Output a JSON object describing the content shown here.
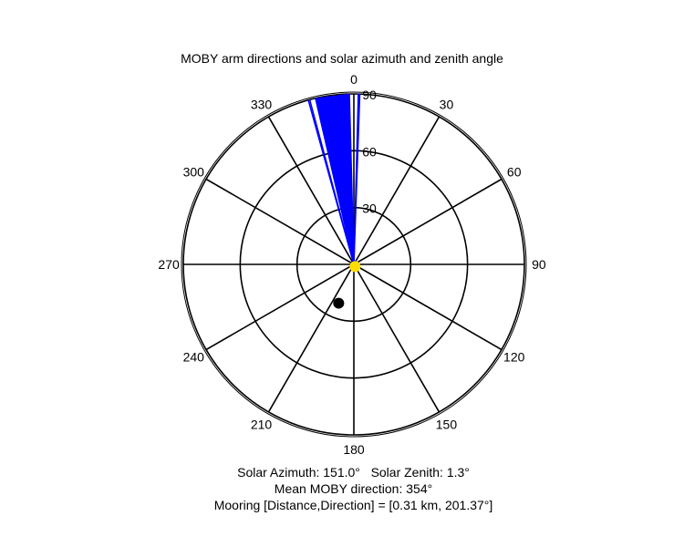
{
  "chart_data": {
    "type": "polar",
    "title": "MOBY arm directions and solar azimuth and zenith angle",
    "orientation": "clockwise from top (0 = north)",
    "angle_ticks": [
      "0",
      "30",
      "60",
      "90",
      "120",
      "150",
      "180",
      "210",
      "240",
      "270",
      "300",
      "330"
    ],
    "radial_ticks": [
      "30",
      "60",
      "90"
    ],
    "radial_max": 90,
    "series": [
      {
        "kind": "arm-direction-wedges",
        "color": "#0000ff",
        "spokes": [
          {
            "direction": 344.5,
            "r": 90
          },
          {
            "direction": 345,
            "r": 90
          },
          {
            "direction": 347,
            "r": 90
          },
          {
            "direction": 349,
            "r": 90
          },
          {
            "direction": 351,
            "r": 90
          },
          {
            "direction": 353,
            "r": 90
          },
          {
            "direction": 355,
            "r": 90
          },
          {
            "direction": 357,
            "r": 90
          },
          {
            "direction": 358.5,
            "r": 90
          },
          {
            "direction": 1.5,
            "r": 90
          },
          {
            "direction": 2,
            "r": 90
          }
        ]
      },
      {
        "kind": "sun-marker",
        "azimuth": 151.0,
        "zenith": 1.3,
        "color": "#ffdd00"
      },
      {
        "kind": "mooring-marker",
        "direction": 201.37,
        "r": 22,
        "color": "#000000"
      }
    ],
    "captions": [
      "Solar Azimuth: 151.0°   Solar Zenith: 1.3°",
      "Mean MOBY direction: 354°",
      "Mooring [Distance,Direction] = [0.31 km, 201.37°]"
    ]
  }
}
